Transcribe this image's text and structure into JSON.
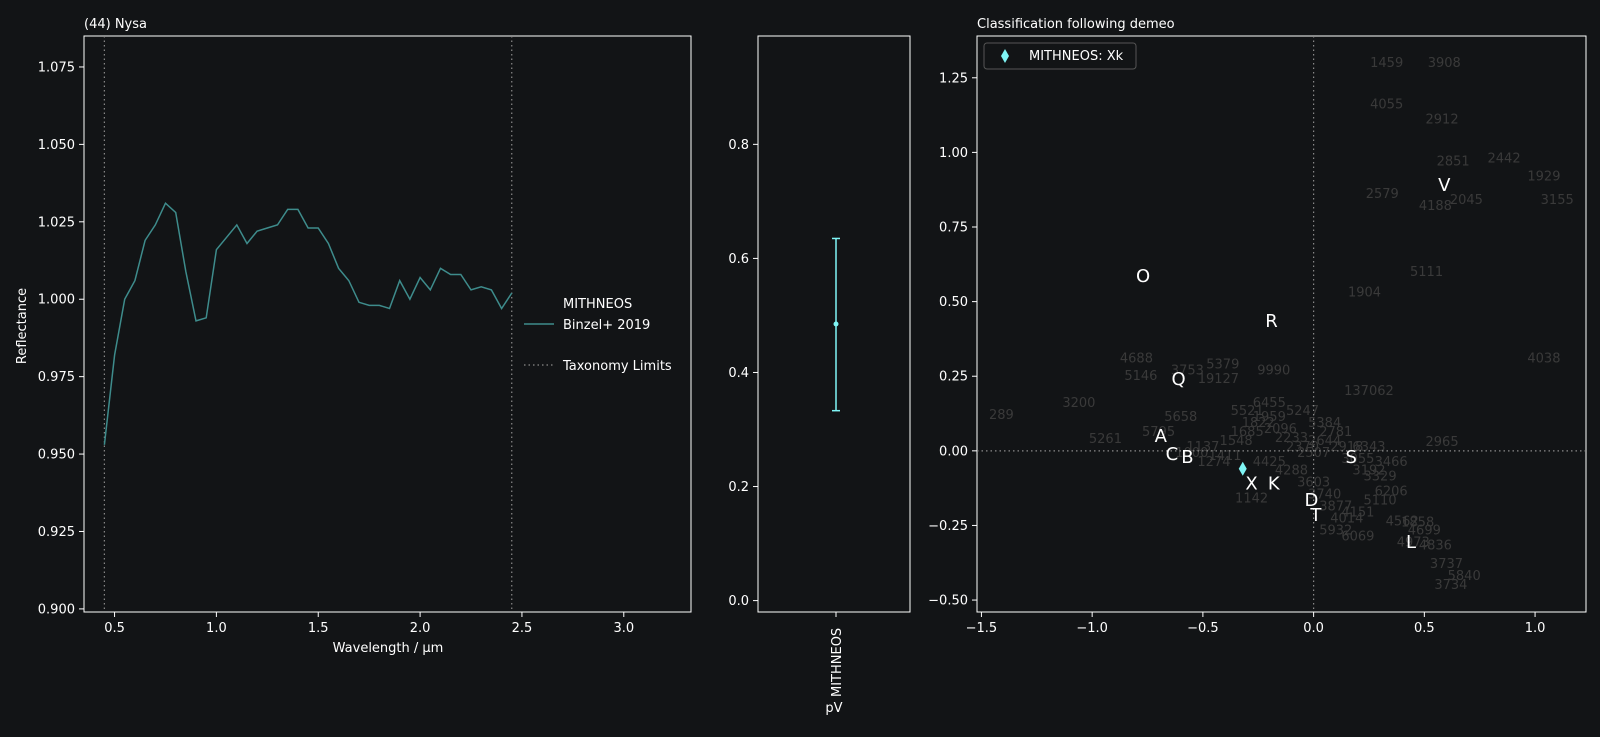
{
  "chart_data": [
    {
      "type": "line",
      "title": "(44) Nysa",
      "xlabel": "Wavelength / μm",
      "ylabel": "Reflectance",
      "xlim": [
        0.35,
        3.33
      ],
      "ylim": [
        0.899,
        1.085
      ],
      "x_ticks": [
        "0.5",
        "1.0",
        "1.5",
        "2.0",
        "2.5",
        "3.0"
      ],
      "x_tick_values": [
        0.5,
        1.0,
        1.5,
        2.0,
        2.5,
        3.0
      ],
      "y_ticks": [
        "0.900",
        "0.925",
        "0.950",
        "0.975",
        "1.000",
        "1.025",
        "1.050",
        "1.075"
      ],
      "y_tick_values": [
        0.9,
        0.925,
        0.95,
        0.975,
        1.0,
        1.025,
        1.05,
        1.075
      ],
      "taxonomy_limits": [
        0.45,
        2.45
      ],
      "legend": {
        "line": "MITHNEOS",
        "line_sub": "Binzel+ 2019",
        "limits": "Taxonomy Limits",
        "placement": "right"
      },
      "colors": {
        "series": "#3e8c8c",
        "limits": "#8a8a8a"
      },
      "series": [
        {
          "name": "MITHNEOS",
          "x": [
            0.45,
            0.5,
            0.55,
            0.6,
            0.65,
            0.7,
            0.75,
            0.8,
            0.85,
            0.9,
            0.95,
            1.0,
            1.05,
            1.1,
            1.15,
            1.2,
            1.25,
            1.3,
            1.35,
            1.4,
            1.45,
            1.5,
            1.55,
            1.6,
            1.65,
            1.7,
            1.75,
            1.8,
            1.85,
            1.9,
            1.95,
            2.0,
            2.05,
            2.1,
            2.15,
            2.2,
            2.25,
            2.3,
            2.35,
            2.4,
            2.45
          ],
          "y": [
            0.953,
            0.982,
            1.0,
            1.006,
            1.019,
            1.024,
            1.031,
            1.028,
            1.009,
            0.993,
            0.994,
            1.016,
            1.02,
            1.024,
            1.018,
            1.022,
            1.023,
            1.024,
            1.029,
            1.029,
            1.023,
            1.023,
            1.018,
            1.01,
            1.006,
            0.999,
            0.998,
            0.998,
            0.997,
            1.006,
            1.0,
            1.007,
            1.003,
            1.01,
            1.008,
            1.008,
            1.003,
            1.004,
            1.003,
            0.997,
            1.002
          ]
        }
      ]
    },
    {
      "type": "errorbar",
      "categories": [
        "MITHNEOS"
      ],
      "xlabel": "pV",
      "ylim": [
        -0.02,
        0.99
      ],
      "y_ticks": [
        "0.0",
        "0.2",
        "0.4",
        "0.6",
        "0.8"
      ],
      "y_tick_values": [
        0.0,
        0.2,
        0.4,
        0.6,
        0.8
      ],
      "values": [
        0.485
      ],
      "err_low": [
        0.333
      ],
      "err_high": [
        0.635
      ],
      "colors": {
        "series": "#7ff5f5"
      }
    },
    {
      "type": "scatter",
      "title": "Classification following demeo",
      "xlim": [
        -1.52,
        1.23
      ],
      "ylim": [
        -0.54,
        1.39
      ],
      "x_ticks": [
        "−1.5",
        "−1.0",
        "−0.5",
        "0.0",
        "0.5",
        "1.0"
      ],
      "x_tick_values": [
        -1.5,
        -1.0,
        -0.5,
        0.0,
        0.5,
        1.0
      ],
      "y_ticks": [
        "−0.50",
        "−0.25",
        "0.00",
        "0.25",
        "0.50",
        "0.75",
        "1.00",
        "1.25"
      ],
      "y_tick_values": [
        -0.5,
        -0.25,
        0.0,
        0.25,
        0.5,
        0.75,
        1.0,
        1.25
      ],
      "legend": {
        "label": "MITHNEOS: Xk",
        "placement": "top-left"
      },
      "colors": {
        "point": "#7ff5f5",
        "bg_labels": "#3a3a3a",
        "limits": "#8a8a8a"
      },
      "point": {
        "x": -0.32,
        "y": -0.06
      },
      "class_labels": [
        {
          "label": "O",
          "x": -0.77,
          "y": 0.585
        },
        {
          "label": "R",
          "x": -0.19,
          "y": 0.435
        },
        {
          "label": "Q",
          "x": -0.61,
          "y": 0.24
        },
        {
          "label": "A",
          "x": -0.69,
          "y": 0.05
        },
        {
          "label": "C",
          "x": -0.64,
          "y": -0.01
        },
        {
          "label": "B",
          "x": -0.57,
          "y": -0.02
        },
        {
          "label": "X",
          "x": -0.28,
          "y": -0.11
        },
        {
          "label": "K",
          "x": -0.18,
          "y": -0.11
        },
        {
          "label": "S",
          "x": 0.17,
          "y": -0.02
        },
        {
          "label": "D",
          "x": -0.01,
          "y": -0.165
        },
        {
          "label": "T",
          "x": 0.01,
          "y": -0.215
        },
        {
          "label": "V",
          "x": 0.59,
          "y": 0.89
        },
        {
          "label": "L",
          "x": 0.44,
          "y": -0.305
        }
      ],
      "background_labels": [
        {
          "t": "1459",
          "x": 0.33,
          "y": 1.3
        },
        {
          "t": "3908",
          "x": 0.59,
          "y": 1.3
        },
        {
          "t": "4055",
          "x": 0.33,
          "y": 1.16
        },
        {
          "t": "2912",
          "x": 0.58,
          "y": 1.11
        },
        {
          "t": "2851",
          "x": 0.63,
          "y": 0.97
        },
        {
          "t": "2442",
          "x": 0.86,
          "y": 0.98
        },
        {
          "t": "1929",
          "x": 1.04,
          "y": 0.92
        },
        {
          "t": "2579",
          "x": 0.31,
          "y": 0.86
        },
        {
          "t": "4188",
          "x": 0.55,
          "y": 0.82
        },
        {
          "t": "2045",
          "x": 0.69,
          "y": 0.84
        },
        {
          "t": "3155",
          "x": 1.1,
          "y": 0.84
        },
        {
          "t": "5111",
          "x": 0.51,
          "y": 0.6
        },
        {
          "t": "1904",
          "x": 0.23,
          "y": 0.53
        },
        {
          "t": "4038",
          "x": 1.04,
          "y": 0.31
        },
        {
          "t": "4688",
          "x": -0.8,
          "y": 0.31
        },
        {
          "t": "5379",
          "x": -0.41,
          "y": 0.29
        },
        {
          "t": "9990",
          "x": -0.18,
          "y": 0.27
        },
        {
          "t": "5146",
          "x": -0.78,
          "y": 0.25
        },
        {
          "t": "3753",
          "x": -0.57,
          "y": 0.27
        },
        {
          "t": "19127",
          "x": -0.43,
          "y": 0.24
        },
        {
          "t": "137062",
          "x": 0.25,
          "y": 0.2
        },
        {
          "t": "3200",
          "x": -1.06,
          "y": 0.16
        },
        {
          "t": "6455",
          "x": -0.2,
          "y": 0.16
        },
        {
          "t": "289",
          "x": -1.41,
          "y": 0.12
        },
        {
          "t": "2965",
          "x": 0.58,
          "y": 0.03
        },
        {
          "t": "5261",
          "x": -0.94,
          "y": 0.04
        },
        {
          "t": "1858",
          "x": 0.47,
          "y": -0.24
        },
        {
          "t": "5840",
          "x": 0.68,
          "y": -0.42
        },
        {
          "t": "3734",
          "x": 0.62,
          "y": -0.45
        },
        {
          "t": "3737",
          "x": 0.6,
          "y": -0.38
        },
        {
          "t": "1142",
          "x": -0.28,
          "y": -0.16
        }
      ]
    }
  ]
}
